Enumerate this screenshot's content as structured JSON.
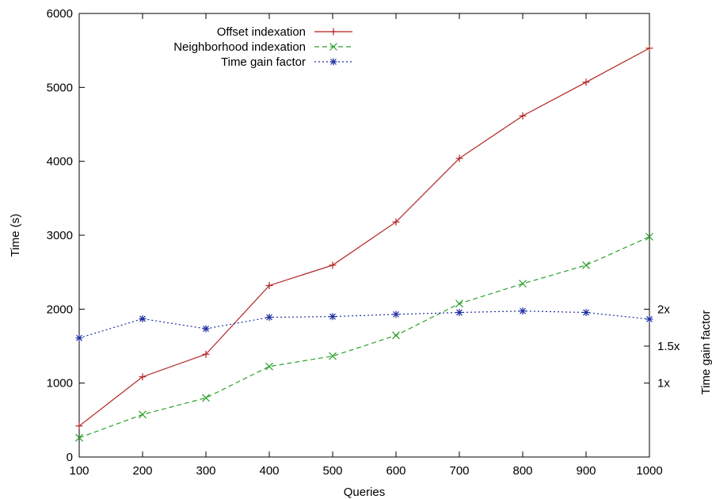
{
  "chart_data": {
    "type": "line",
    "xlabel": "Queries",
    "ylabel": "Time (s)",
    "y2label": "Time gain factor",
    "xlim": [
      100,
      1000
    ],
    "ylim": [
      0,
      6000
    ],
    "x_ticks": [
      "100",
      "200",
      "300",
      "400",
      "500",
      "600",
      "700",
      "800",
      "900",
      "1000"
    ],
    "y_ticks": [
      "0",
      "1000",
      "2000",
      "3000",
      "4000",
      "5000",
      "6000"
    ],
    "y2_ticks": [
      {
        "label": "1x",
        "value": 1000
      },
      {
        "label": "1.5x",
        "value": 1500
      },
      {
        "label": "2x",
        "value": 2000
      }
    ],
    "grid": false,
    "legend_position": "top-left",
    "x": [
      100,
      200,
      300,
      400,
      500,
      600,
      700,
      800,
      900,
      1000
    ],
    "series": [
      {
        "name": "Offset indexation",
        "color": "#b22222",
        "dash": "solid",
        "marker": "plus",
        "values": [
          420,
          1085,
          1390,
          2320,
          2595,
          3180,
          4040,
          4615,
          5070,
          5530
        ]
      },
      {
        "name": "Neighborhood indexation",
        "color": "#2aa02a",
        "dash": "dashed",
        "marker": "cross",
        "values": [
          260,
          575,
          800,
          1225,
          1365,
          1645,
          2075,
          2345,
          2595,
          2980
        ]
      },
      {
        "name": "Time gain factor",
        "color": "#1f2fa0",
        "dash": "dotted",
        "marker": "star",
        "values": [
          1610,
          1870,
          1735,
          1890,
          1900,
          1930,
          1955,
          1975,
          1955,
          1865
        ]
      }
    ]
  }
}
